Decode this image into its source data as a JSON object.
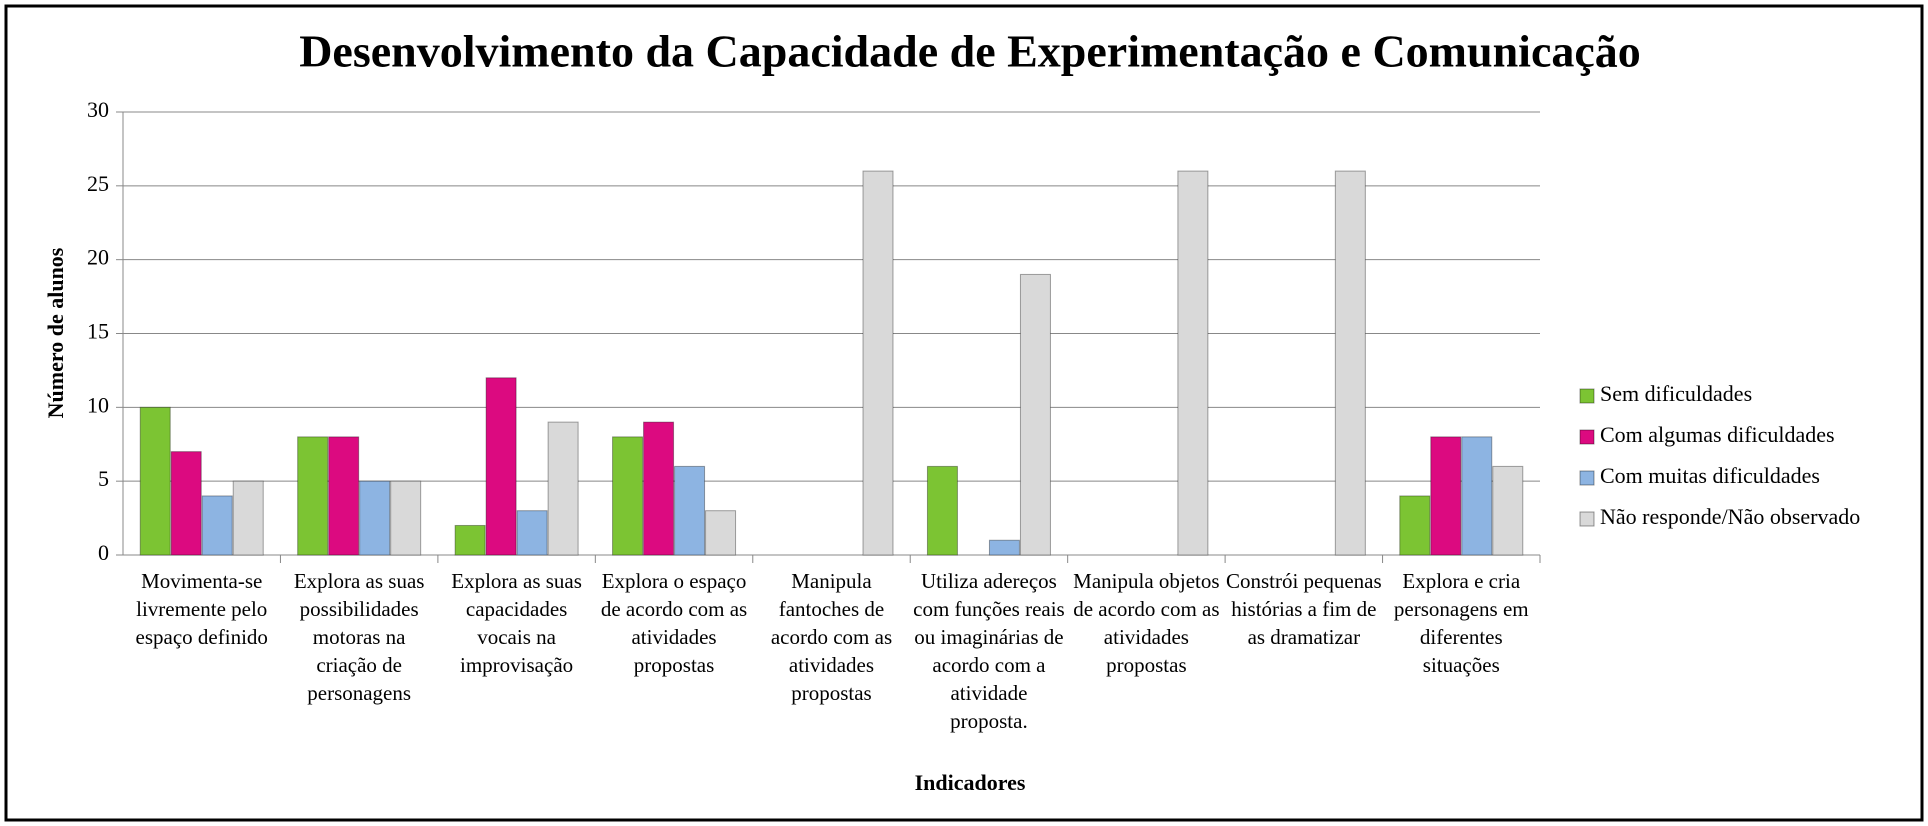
{
  "chart_data": {
    "type": "bar",
    "title": "Desenvolvimento da Capacidade de Experimentação e Comunicação",
    "x_label": "Indicadores",
    "y_label": "Número de alunos",
    "categories": [
      "Movimenta-se livremente pelo espaço definido",
      "Explora as suas possibilidades motoras na criação de personagens",
      "Explora as suas capacidades vocais na improvisação",
      "Explora o espaço de acordo com as atividades propostas",
      "Manipula fantoches de acordo com as atividades propostas",
      "Utiliza adereços com funções reais ou imaginárias de acordo com a atividade proposta.",
      "Manipula objetos de acordo com as atividades propostas",
      "Constrói pequenas histórias a fim de as dramatizar",
      "Explora e cria personagens em diferentes situações"
    ],
    "series": [
      {
        "name": "Sem dificuldades",
        "color": "#7cc433",
        "values": [
          10,
          8,
          2,
          8,
          0,
          6,
          0,
          0,
          4
        ]
      },
      {
        "name": "Com algumas dificuldades",
        "color": "#dc0a80",
        "values": [
          7,
          8,
          12,
          9,
          0,
          0,
          0,
          0,
          8
        ]
      },
      {
        "name": "Com muitas dificuldades",
        "color": "#8db4e2",
        "values": [
          4,
          5,
          3,
          6,
          0,
          1,
          0,
          0,
          8
        ]
      },
      {
        "name": "Não responde/Não observado",
        "color": "#d9d9d9",
        "values": [
          5,
          5,
          9,
          3,
          26,
          19,
          26,
          26,
          6
        ]
      }
    ],
    "ylim": [
      0,
      30
    ],
    "yticks": [
      0,
      5,
      10,
      15,
      20,
      25,
      30
    ],
    "grid": true,
    "legend": "right"
  }
}
